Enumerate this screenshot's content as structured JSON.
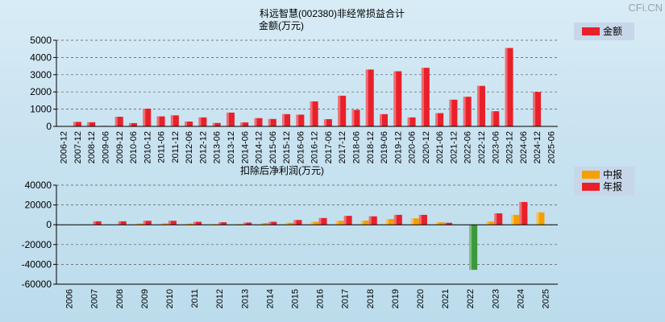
{
  "watermark": "CFi.CN",
  "colors": {
    "bar_red": "#e8202a",
    "bar_orange": "#f5a000",
    "bar_green": "#3a9a3a",
    "legend_bg": "#c7d6e8"
  },
  "chart_data": [
    {
      "type": "bar",
      "title": "科远智慧(002380)非经常损益合计",
      "subtitle": "金额(万元)",
      "legend_position": "top-right",
      "grid": true,
      "ylim": [
        0,
        5000
      ],
      "yticks": [
        "5000",
        "4000",
        "3000",
        "2000",
        "1000",
        "0"
      ],
      "categories": [
        "2006-12",
        "2007-12",
        "2008-12",
        "2009-06",
        "2009-12",
        "2010-06",
        "2010-12",
        "2011-06",
        "2011-12",
        "2012-06",
        "2012-12",
        "2013-06",
        "2013-12",
        "2014-06",
        "2014-12",
        "2015-06",
        "2015-12",
        "2016-06",
        "2016-12",
        "2017-06",
        "2017-12",
        "2018-06",
        "2018-12",
        "2019-06",
        "2019-12",
        "2020-06",
        "2020-12",
        "2021-06",
        "2021-12",
        "2022-06",
        "2022-12",
        "2023-06",
        "2023-12",
        "2024-06",
        "2024-12",
        "2025-06"
      ],
      "series": [
        {
          "name": "金额",
          "values": [
            0,
            260,
            240,
            30,
            560,
            190,
            1030,
            580,
            640,
            280,
            520,
            200,
            800,
            230,
            480,
            430,
            710,
            680,
            1450,
            420,
            1780,
            960,
            3300,
            710,
            3200,
            520,
            3400,
            770,
            1550,
            1720,
            2350,
            880,
            4550,
            0,
            2000,
            0
          ]
        }
      ]
    },
    {
      "type": "bar",
      "title": "扣除后净利润(万元)",
      "legend_position": "top-right",
      "grid": true,
      "ylim": [
        -60000,
        40000
      ],
      "yticks": [
        "40000",
        "20000",
        "0",
        "-20000",
        "-40000",
        "-60000"
      ],
      "categories": [
        "2006",
        "2007",
        "2008",
        "2009",
        "2010",
        "2011",
        "2012",
        "2013",
        "2014",
        "2015",
        "2016",
        "2017",
        "2018",
        "2019",
        "2020",
        "2021",
        "2022",
        "2023",
        "2024",
        "2025"
      ],
      "series": [
        {
          "name": "中报",
          "values": [
            0,
            0,
            300,
            1200,
            1400,
            1200,
            700,
            700,
            1800,
            2000,
            3000,
            4000,
            4200,
            5800,
            6500,
            2500,
            -300,
            3200,
            10000,
            12500
          ]
        },
        {
          "name": "年报",
          "values": [
            0,
            3500,
            3500,
            4000,
            4000,
            3000,
            2500,
            2200,
            3000,
            4800,
            6800,
            9000,
            8500,
            10000,
            10000,
            2000,
            -45500,
            11500,
            23000,
            null
          ]
        }
      ]
    }
  ]
}
